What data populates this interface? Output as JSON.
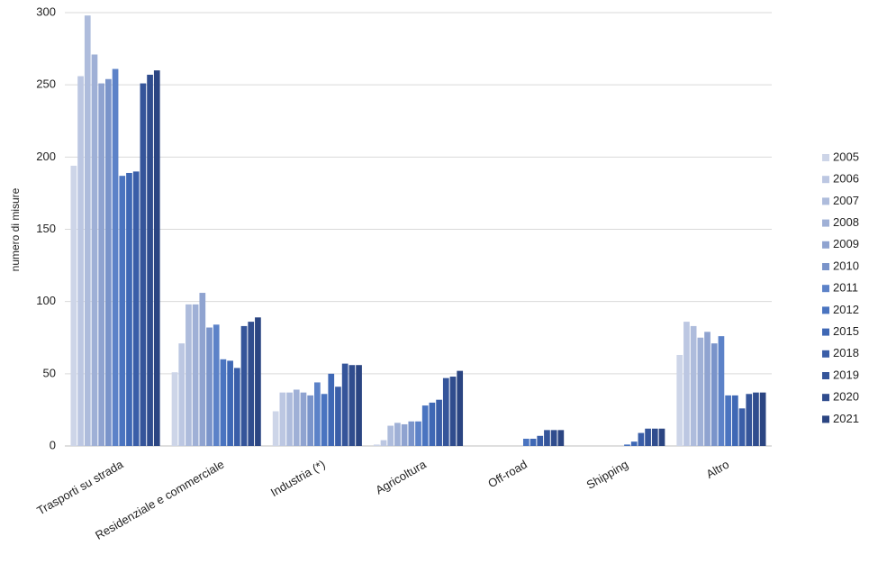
{
  "chart_data": {
    "type": "bar",
    "y_label": "numero di misure",
    "categories": [
      "Trasporti su strada",
      "Residenziale e commerciale",
      "Industria (*)",
      "Agricoltura",
      "Off-road",
      "Shipping",
      "Altro"
    ],
    "series": [
      {
        "name": "2005",
        "color": "#cdd5e8",
        "values": [
          194,
          51,
          24,
          1,
          0,
          0,
          63
        ]
      },
      {
        "name": "2006",
        "color": "#bcc7e2",
        "values": [
          256,
          71,
          37,
          4,
          0,
          0,
          86
        ]
      },
      {
        "name": "2007",
        "color": "#aebcdc",
        "values": [
          298,
          98,
          37,
          14,
          0,
          0,
          83
        ]
      },
      {
        "name": "2008",
        "color": "#9fb0d6",
        "values": [
          271,
          98,
          39,
          16,
          0,
          0,
          75
        ]
      },
      {
        "name": "2009",
        "color": "#8fa3d0",
        "values": [
          251,
          106,
          37,
          15,
          0,
          0,
          79
        ]
      },
      {
        "name": "2010",
        "color": "#7a94ca",
        "values": [
          254,
          82,
          35,
          17,
          0,
          0,
          71
        ]
      },
      {
        "name": "2011",
        "color": "#5c82c8",
        "values": [
          261,
          84,
          44,
          17,
          0,
          0,
          76
        ]
      },
      {
        "name": "2012",
        "color": "#4a74c0",
        "values": [
          187,
          60,
          36,
          28,
          5,
          1,
          35
        ]
      },
      {
        "name": "2015",
        "color": "#3f68b5",
        "values": [
          189,
          59,
          50,
          30,
          5,
          3,
          35
        ]
      },
      {
        "name": "2018",
        "color": "#3a5ea8",
        "values": [
          190,
          54,
          41,
          32,
          7,
          9,
          26
        ]
      },
      {
        "name": "2019",
        "color": "#35559a",
        "values": [
          251,
          83,
          57,
          47,
          11,
          12,
          36
        ]
      },
      {
        "name": "2020",
        "color": "#304d8e",
        "values": [
          257,
          86,
          56,
          48,
          11,
          12,
          37
        ]
      },
      {
        "name": "2021",
        "color": "#2b4582",
        "values": [
          260,
          89,
          56,
          52,
          11,
          12,
          37
        ]
      }
    ],
    "ylim": [
      0,
      300
    ],
    "yticks": [
      0,
      50,
      100,
      150,
      200,
      250,
      300
    ],
    "grid": true,
    "legend": "right"
  }
}
